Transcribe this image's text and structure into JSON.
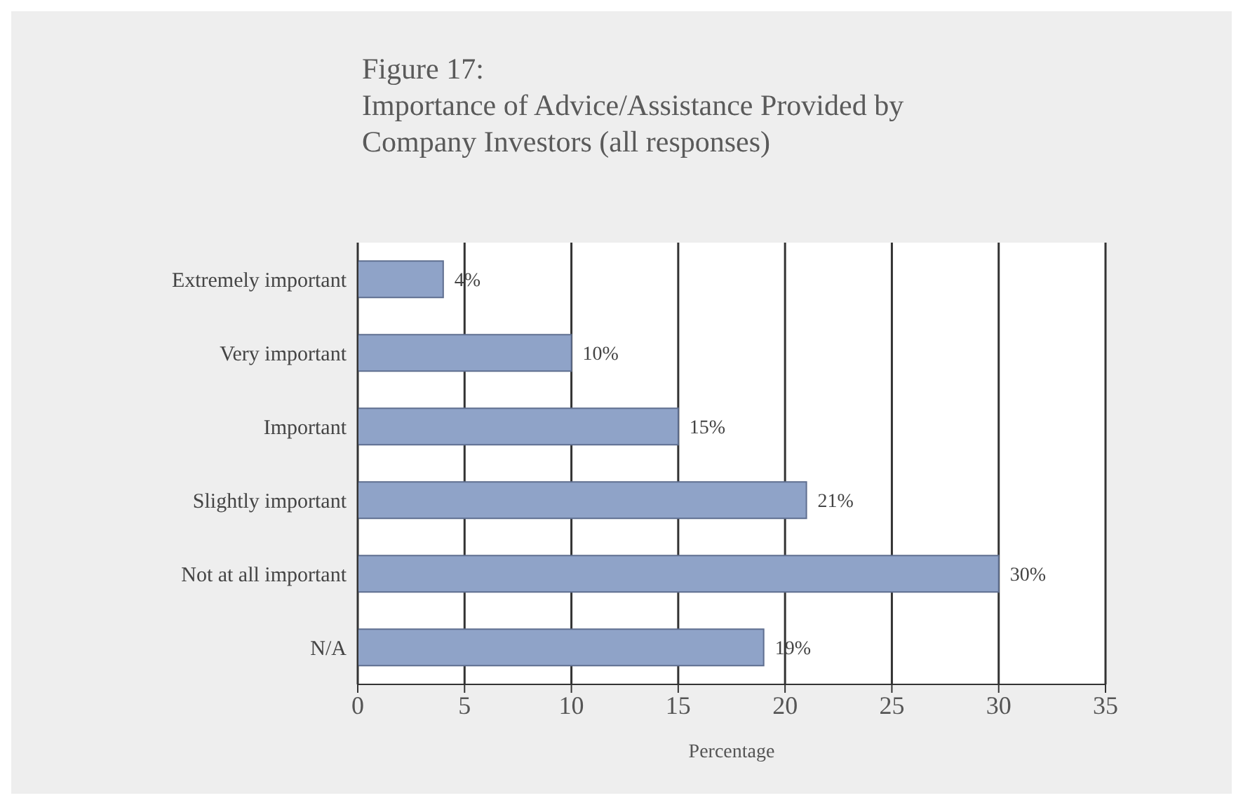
{
  "chart_data": {
    "type": "bar",
    "orientation": "horizontal",
    "title": "Figure 17:\nImportance of Advice/Assistance Provided by\nCompany Investors (all responses)",
    "xlabel": "Percentage",
    "categories": [
      "Extremely important",
      "Very important",
      "Important",
      "Slightly important",
      "Not at all important",
      "N/A"
    ],
    "values": [
      4,
      10,
      15,
      21,
      30,
      19
    ],
    "value_labels": [
      "4%",
      "10%",
      "15%",
      "21%",
      "30%",
      "19%"
    ],
    "color": "#8fa3c8",
    "xlim": [
      0,
      35
    ],
    "xticks": [
      0,
      5,
      10,
      15,
      20,
      25,
      30,
      35
    ],
    "grid": "x"
  }
}
